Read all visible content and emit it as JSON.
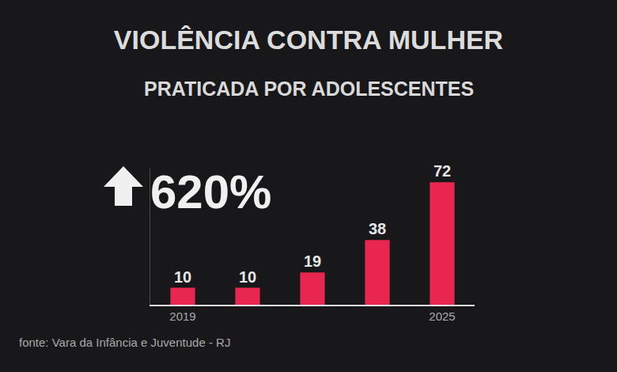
{
  "chart_data": {
    "type": "bar",
    "title": "VIOLÊNCIA CONTRA MULHER",
    "subtitle": "PRATICADA POR ADOLESCENTES",
    "highlight": "620%",
    "source": "fonte: Vara da Infância e Juventude - RJ",
    "categories": [
      "2019",
      null,
      null,
      null,
      "2025"
    ],
    "values": [
      10,
      10,
      19,
      38,
      72
    ],
    "color": "#e8264f",
    "ylim": [
      0,
      80
    ],
    "data_labels": true,
    "tick_labels": "x",
    "grid": false
  }
}
